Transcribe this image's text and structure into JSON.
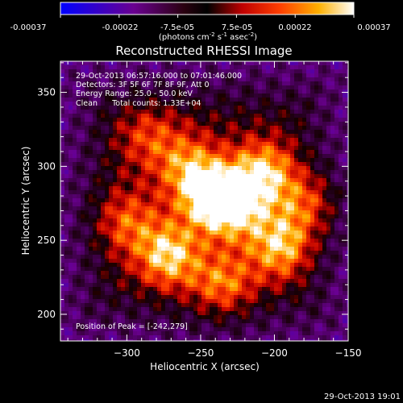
{
  "colorbar": {
    "ticks": [
      "-0.00037",
      "-0.00022",
      "-7.5e-05",
      "7.5e-05",
      "0.00022",
      "0.00037"
    ],
    "unit_main": "(photons cm",
    "unit_exp1": "-2",
    "unit_s": " s",
    "unit_exp2": "-1",
    "unit_asec": " asec",
    "unit_exp3": "-2",
    "unit_close": ")"
  },
  "chart_data": {
    "type": "heatmap",
    "title": "Reconstructed RHESSI Image",
    "xlabel": "Heliocentric X (arcsec)",
    "ylabel": "Heliocentric Y (arcsec)",
    "xlim": [
      -345,
      -150
    ],
    "ylim": [
      182,
      371
    ],
    "xticks": [
      -300,
      -250,
      -200,
      -150
    ],
    "yticks": [
      200,
      250,
      300,
      350
    ],
    "xtick_labels": [
      "−300",
      "−250",
      "−200",
      "−150"
    ],
    "ytick_labels": [
      "200",
      "250",
      "300",
      "350"
    ],
    "color_range": [
      -0.00037,
      0.00037
    ],
    "colormap": "black-purple-red-orange-yellow-white",
    "sources": [
      {
        "x": -242,
        "y": 279,
        "peak": 1.0
      },
      {
        "x": -208,
        "y": 296,
        "peak": 0.85
      },
      {
        "x": -272,
        "y": 240,
        "peak": 0.85
      },
      {
        "x": -196,
        "y": 246,
        "peak": 0.8
      },
      {
        "x": -225,
        "y": 272,
        "peak": 0.7
      },
      {
        "x": -258,
        "y": 300,
        "peak": 0.6
      },
      {
        "x": -300,
        "y": 262,
        "peak": 0.5
      },
      {
        "x": -235,
        "y": 220,
        "peak": 0.6
      },
      {
        "x": -178,
        "y": 275,
        "peak": 0.55
      },
      {
        "x": -285,
        "y": 320,
        "peak": 0.45
      }
    ],
    "annotations": [
      "29-Oct-2013 06:57:16.000 to 07:01:46.000",
      "Detectors: 3F 5F 6F 7F 8F 9F, Att 0",
      "Energy Range: 25.0 - 50.0 keV",
      "Clean      Total counts: 1.33E+04"
    ],
    "peak_label": "Position of Peak = [-242,279]"
  },
  "footer": {
    "timestamp": "29-Oct-2013 19:01"
  }
}
